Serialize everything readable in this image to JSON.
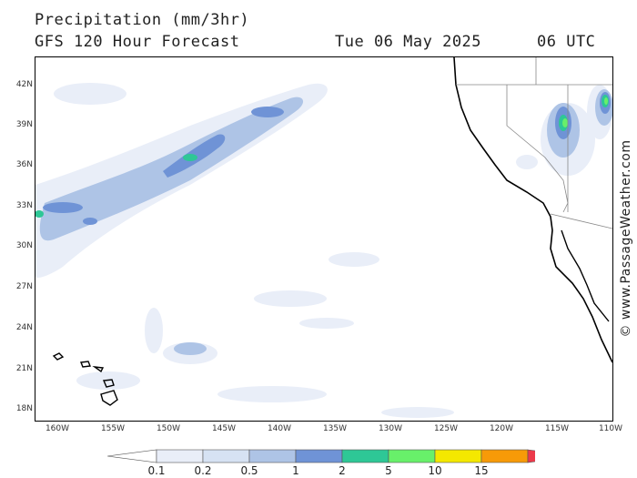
{
  "header": {
    "title": "Precipitation (mm/3hr)",
    "model": "GFS 120 Hour Forecast",
    "date": "Tue 06 May 2025",
    "time": "06 UTC"
  },
  "watermark": "© www.PassageWeather.com",
  "axes": {
    "lat_labels": [
      "42N",
      "39N",
      "36N",
      "33N",
      "30N",
      "27N",
      "24N",
      "21N",
      "18N"
    ],
    "lon_labels": [
      "160W",
      "155W",
      "150W",
      "145W",
      "140W",
      "135W",
      "130W",
      "125W",
      "120W",
      "115W",
      "110W"
    ]
  },
  "legend": {
    "ticks": [
      "0.1",
      "0.2",
      "0.5",
      "1",
      "2",
      "5",
      "10",
      "15"
    ],
    "colors": [
      "#e9eef8",
      "#d6e2f3",
      "#aec4e6",
      "#6f93d6",
      "#2ec796",
      "#68f06a",
      "#f4e800",
      "#f79a08",
      "#ec3a4b"
    ]
  }
}
